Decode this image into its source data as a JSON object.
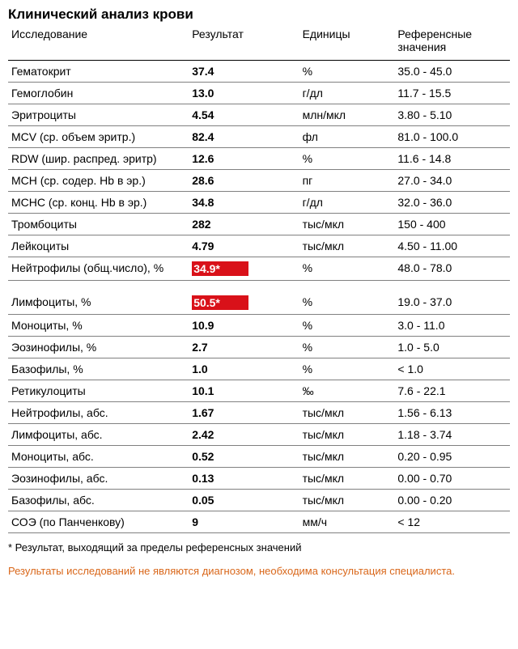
{
  "title": "Клинический анализ крови",
  "columns": {
    "test": "Исследование",
    "result": "Результат",
    "unit": "Единицы",
    "ref": "Референсные значения"
  },
  "highlight_bg": "#d91119",
  "highlight_fg": "#ffffff",
  "border_color": "#808080",
  "rows": [
    {
      "test": "Гематокрит",
      "result": "37.4",
      "unit": "%",
      "ref": "35.0 - 45.0",
      "hl": false,
      "gap": false
    },
    {
      "test": "Гемоглобин",
      "result": "13.0",
      "unit": "г/дл",
      "ref": "11.7 - 15.5",
      "hl": false,
      "gap": false
    },
    {
      "test": "Эритроциты",
      "result": "4.54",
      "unit": "млн/мкл",
      "ref": "3.80 - 5.10",
      "hl": false,
      "gap": false
    },
    {
      "test": "MCV (ср. объем эритр.)",
      "result": "82.4",
      "unit": "фл",
      "ref": "81.0 - 100.0",
      "hl": false,
      "gap": false
    },
    {
      "test": "RDW (шир. распред. эритр)",
      "result": "12.6",
      "unit": "%",
      "ref": "11.6 - 14.8",
      "hl": false,
      "gap": false
    },
    {
      "test": "MCH (ср. содер. Hb в эр.)",
      "result": "28.6",
      "unit": "пг",
      "ref": "27.0 - 34.0",
      "hl": false,
      "gap": false
    },
    {
      "test": "MCHC (ср. конц. Hb в эр.)",
      "result": "34.8",
      "unit": "г/дл",
      "ref": "32.0 - 36.0",
      "hl": false,
      "gap": false
    },
    {
      "test": "Тромбоциты",
      "result": "282",
      "unit": "тыс/мкл",
      "ref": "150 - 400",
      "hl": false,
      "gap": false
    },
    {
      "test": "Лейкоциты",
      "result": "4.79",
      "unit": "тыс/мкл",
      "ref": "4.50 - 11.00",
      "hl": false,
      "gap": false
    },
    {
      "test": "Нейтрофилы (общ.число), %",
      "result": "34.9*",
      "unit": "%",
      "ref": "48.0 - 78.0",
      "hl": true,
      "gap": false
    },
    {
      "test": "Лимфоциты, %",
      "result": "50.5*",
      "unit": "%",
      "ref": "19.0 - 37.0",
      "hl": true,
      "gap": true
    },
    {
      "test": "Моноциты, %",
      "result": "10.9",
      "unit": "%",
      "ref": "3.0 - 11.0",
      "hl": false,
      "gap": false
    },
    {
      "test": "Эозинофилы, %",
      "result": "2.7",
      "unit": "%",
      "ref": "1.0 - 5.0",
      "hl": false,
      "gap": false
    },
    {
      "test": "Базофилы, %",
      "result": "1.0",
      "unit": "%",
      "ref": "< 1.0",
      "hl": false,
      "gap": false
    },
    {
      "test": "Ретикулоциты",
      "result": "10.1",
      "unit": "‰",
      "ref": "7.6 - 22.1",
      "hl": false,
      "gap": false
    },
    {
      "test": "Нейтрофилы, абс.",
      "result": "1.67",
      "unit": "тыс/мкл",
      "ref": "1.56 - 6.13",
      "hl": false,
      "gap": false
    },
    {
      "test": "Лимфоциты, абс.",
      "result": "2.42",
      "unit": "тыс/мкл",
      "ref": "1.18 - 3.74",
      "hl": false,
      "gap": false
    },
    {
      "test": "Моноциты, абс.",
      "result": "0.52",
      "unit": "тыс/мкл",
      "ref": "0.20 - 0.95",
      "hl": false,
      "gap": false
    },
    {
      "test": "Эозинофилы, абс.",
      "result": "0.13",
      "unit": "тыс/мкл",
      "ref": "0.00 - 0.70",
      "hl": false,
      "gap": false
    },
    {
      "test": "Базофилы, абс.",
      "result": "0.05",
      "unit": "тыс/мкл",
      "ref": "0.00 - 0.20",
      "hl": false,
      "gap": false
    },
    {
      "test": "СОЭ (по Панченкову)",
      "result": "9",
      "unit": "мм/ч",
      "ref": "< 12",
      "hl": false,
      "gap": false
    }
  ],
  "footnote": "* Результат, выходящий за пределы референсных значений",
  "disclaimer": "Результаты исследований не являются диагнозом, необходима консультация специалиста."
}
